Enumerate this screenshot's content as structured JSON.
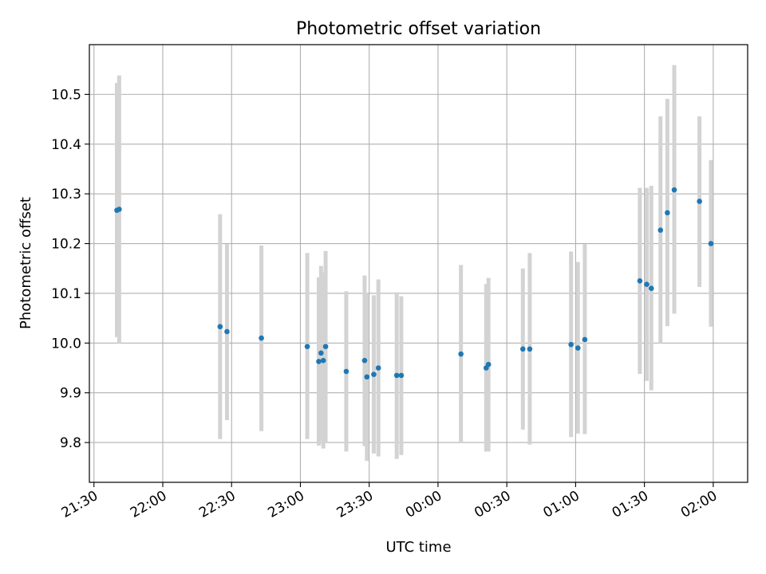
{
  "chart_data": {
    "type": "scatter",
    "title": "Photometric offset variation",
    "xlabel": "UTC time",
    "ylabel": "Photometric offset",
    "x_tick_labels": [
      "21:30",
      "22:00",
      "22:30",
      "23:00",
      "23:30",
      "00:00",
      "00:30",
      "01:00",
      "01:30",
      "02:00"
    ],
    "y_tick_labels": [
      "9.8",
      "9.9",
      "10.0",
      "10.1",
      "10.2",
      "10.3",
      "10.4",
      "10.5"
    ],
    "xlim": [
      -2,
      285
    ],
    "ylim": [
      9.72,
      10.6
    ],
    "grid": true,
    "x_unit": "minutes after 21:30 UTC",
    "points": [
      {
        "x": 10,
        "y": 10.267,
        "lo": 10.012,
        "hi": 10.523
      },
      {
        "x": 11,
        "y": 10.269,
        "lo": 10.0,
        "hi": 10.538
      },
      {
        "x": 55,
        "y": 10.033,
        "lo": 9.807,
        "hi": 10.259
      },
      {
        "x": 58,
        "y": 10.023,
        "lo": 9.845,
        "hi": 10.199
      },
      {
        "x": 73,
        "y": 10.01,
        "lo": 9.823,
        "hi": 10.196
      },
      {
        "x": 93,
        "y": 9.993,
        "lo": 9.807,
        "hi": 10.181
      },
      {
        "x": 98,
        "y": 9.963,
        "lo": 9.794,
        "hi": 10.132
      },
      {
        "x": 99,
        "y": 9.98,
        "lo": 9.803,
        "hi": 10.155
      },
      {
        "x": 100,
        "y": 9.965,
        "lo": 9.788,
        "hi": 10.142
      },
      {
        "x": 101,
        "y": 9.993,
        "lo": 9.8,
        "hi": 10.185
      },
      {
        "x": 110,
        "y": 9.943,
        "lo": 9.782,
        "hi": 10.104
      },
      {
        "x": 118,
        "y": 9.965,
        "lo": 9.793,
        "hi": 10.136
      },
      {
        "x": 119,
        "y": 9.932,
        "lo": 9.763,
        "hi": 10.1
      },
      {
        "x": 122,
        "y": 9.937,
        "lo": 9.778,
        "hi": 10.096
      },
      {
        "x": 124,
        "y": 9.95,
        "lo": 9.772,
        "hi": 10.128
      },
      {
        "x": 132,
        "y": 9.935,
        "lo": 9.767,
        "hi": 10.102
      },
      {
        "x": 134,
        "y": 9.935,
        "lo": 9.775,
        "hi": 10.094
      },
      {
        "x": 160,
        "y": 9.978,
        "lo": 9.8,
        "hi": 10.157
      },
      {
        "x": 171,
        "y": 9.95,
        "lo": 9.782,
        "hi": 10.119
      },
      {
        "x": 172,
        "y": 9.957,
        "lo": 9.782,
        "hi": 10.131
      },
      {
        "x": 187,
        "y": 9.988,
        "lo": 9.826,
        "hi": 10.15
      },
      {
        "x": 190,
        "y": 9.988,
        "lo": 9.796,
        "hi": 10.181
      },
      {
        "x": 208,
        "y": 9.997,
        "lo": 9.811,
        "hi": 10.184
      },
      {
        "x": 211,
        "y": 9.99,
        "lo": 9.818,
        "hi": 10.163
      },
      {
        "x": 214,
        "y": 10.007,
        "lo": 9.817,
        "hi": 10.199
      },
      {
        "x": 238,
        "y": 10.125,
        "lo": 9.938,
        "hi": 10.312
      },
      {
        "x": 241,
        "y": 10.118,
        "lo": 9.924,
        "hi": 10.312
      },
      {
        "x": 243,
        "y": 10.11,
        "lo": 9.905,
        "hi": 10.316
      },
      {
        "x": 247,
        "y": 10.227,
        "lo": 10.0,
        "hi": 10.456
      },
      {
        "x": 250,
        "y": 10.262,
        "lo": 10.034,
        "hi": 10.491
      },
      {
        "x": 253,
        "y": 10.308,
        "lo": 10.059,
        "hi": 10.559
      },
      {
        "x": 264,
        "y": 10.285,
        "lo": 10.113,
        "hi": 10.456
      },
      {
        "x": 269,
        "y": 10.2,
        "lo": 10.033,
        "hi": 10.368
      }
    ],
    "colors": {
      "point": "#1f77b4",
      "errorbar": "#d3d3d3",
      "grid": "#b0b0b0"
    }
  }
}
